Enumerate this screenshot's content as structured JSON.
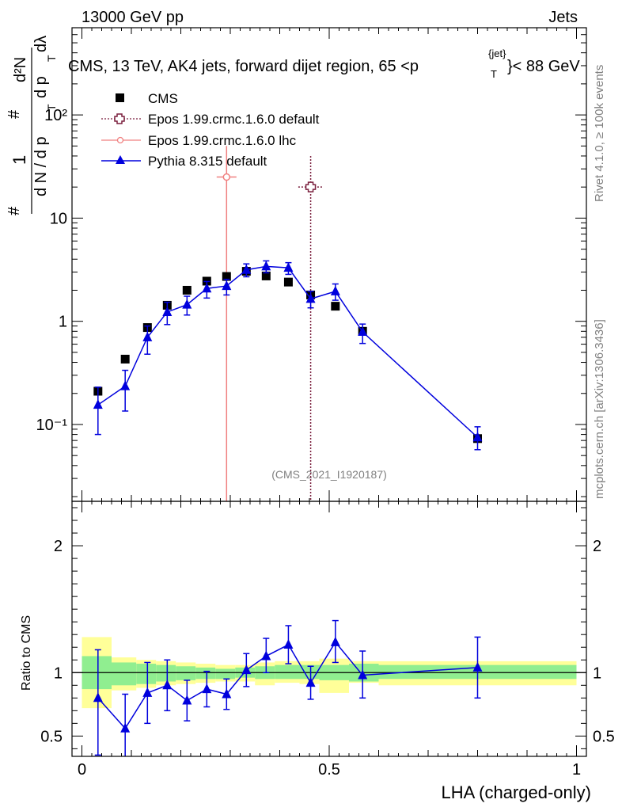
{
  "header": {
    "left": "13000 GeV pp",
    "right": "Jets",
    "plot_title_main": "CMS, 13 TeV, AK4 jets, forward dijet region, 65 <p",
    "plot_title_sub": "T",
    "plot_title_sup": "{jet}",
    "plot_title_end": "}< 88 GeV",
    "watermark": "(CMS_2021_I1920187)",
    "side_label_top": "Rivet 4.1.0, ≥ 100k events",
    "side_label_bottom": "mcplots.cern.ch [arXiv:1306.3436]"
  },
  "colors": {
    "cms": "#000000",
    "epos_default": "#7a1f3d",
    "epos_lhc": "#f08080",
    "pythia": "#0000dd",
    "band_inner": "#90ee90",
    "band_outer": "#ffff99"
  },
  "chart_data": [
    {
      "type": "scatter",
      "panel": "main",
      "title": "CMS, 13 TeV, AK4 jets, forward dijet region, 65 <p_T^{jet}< 88 GeV",
      "xlabel": "LHA (charged-only)",
      "ylabel_parts": [
        "1",
        "d N / d p",
        "T",
        "#",
        "d²N",
        "d p",
        "T",
        "dλ",
        "#"
      ],
      "yscale": "log",
      "ylim": [
        0.018,
        700
      ],
      "xlim": [
        -0.02,
        1.02
      ],
      "y_tick_labels": [
        "10⁻¹",
        "1",
        "10",
        "10²"
      ],
      "y_tick_values": [
        0.1,
        1,
        10,
        100
      ],
      "legend": [
        "CMS",
        "Epos 1.99.crmc.1.6.0 default",
        "Epos 1.99.crmc.1.6.0 lhc",
        "Pythia 8.315 default"
      ],
      "series": [
        {
          "name": "CMS",
          "marker": "square",
          "x": [
            0.0325,
            0.0875,
            0.1325,
            0.1725,
            0.2125,
            0.2525,
            0.2925,
            0.3325,
            0.3725,
            0.4175,
            0.4625,
            0.5125,
            0.5675,
            0.8
          ],
          "values": [
            0.21,
            0.43,
            0.87,
            1.43,
            2.0,
            2.45,
            2.72,
            3.05,
            2.75,
            2.4,
            1.8,
            1.4,
            0.8,
            0.073
          ]
        },
        {
          "name": "Epos 1.99.crmc.1.6.0 default",
          "marker": "open-cross",
          "x": [
            0.4625
          ],
          "xerr": [
            0.025
          ],
          "values": [
            20.0
          ],
          "yerr_low": [
            19.99
          ],
          "yerr_high": [
            20.0
          ]
        },
        {
          "name": "Epos 1.99.crmc.1.6.0 lhc",
          "marker": "open-circle",
          "x": [
            0.2925
          ],
          "xerr": [
            0.02
          ],
          "values": [
            25.0
          ],
          "yerr_low": [
            24.99
          ],
          "yerr_high": [
            25.0
          ]
        },
        {
          "name": "Pythia 8.315 default",
          "marker": "triangle",
          "x": [
            0.0325,
            0.0875,
            0.1325,
            0.1725,
            0.2125,
            0.2525,
            0.2925,
            0.3325,
            0.3725,
            0.4175,
            0.4625,
            0.5125,
            0.5675,
            0.8
          ],
          "values": [
            0.155,
            0.235,
            0.7,
            1.23,
            1.45,
            2.08,
            2.2,
            3.15,
            3.4,
            3.3,
            1.65,
            1.95,
            0.79,
            0.075
          ],
          "yerr_low": [
            0.075,
            0.1,
            0.22,
            0.3,
            0.3,
            0.4,
            0.4,
            0.45,
            0.45,
            0.45,
            0.3,
            0.35,
            0.18,
            0.018
          ],
          "yerr_high": [
            0.075,
            0.1,
            0.2,
            0.3,
            0.3,
            0.35,
            0.35,
            0.45,
            0.45,
            0.4,
            0.3,
            0.35,
            0.15,
            0.02
          ]
        }
      ]
    },
    {
      "type": "line",
      "panel": "ratio",
      "ylabel": "Ratio to CMS",
      "xlabel": "LHA (charged-only)",
      "ylim": [
        0.34,
        2.35
      ],
      "xlim": [
        -0.02,
        1.02
      ],
      "y_tick_labels": [
        "0.5",
        "1",
        "2"
      ],
      "y_tick_values": [
        0.5,
        1,
        2
      ],
      "x_tick_labels": [
        "0",
        "0.5",
        "1"
      ],
      "x_tick_values": [
        0,
        0.5,
        1
      ],
      "uncertainty_bands": {
        "edges": [
          0,
          0.06,
          0.11,
          0.15,
          0.19,
          0.23,
          0.27,
          0.31,
          0.35,
          0.39,
          0.44,
          0.48,
          0.54,
          0.6,
          1.0
        ],
        "inner_low": [
          0.87,
          0.9,
          0.91,
          0.93,
          0.94,
          0.95,
          0.95,
          0.96,
          0.95,
          0.95,
          0.95,
          0.94,
          0.93,
          0.95
        ],
        "inner_high": [
          1.13,
          1.08,
          1.07,
          1.06,
          1.05,
          1.04,
          1.03,
          1.04,
          1.05,
          1.06,
          1.06,
          1.06,
          1.07,
          1.06
        ],
        "outer_low": [
          0.72,
          0.86,
          0.88,
          0.9,
          0.91,
          0.92,
          0.93,
          0.93,
          0.9,
          0.92,
          0.91,
          0.84,
          0.92,
          0.9
        ],
        "outer_high": [
          1.28,
          1.12,
          1.1,
          1.09,
          1.08,
          1.07,
          1.06,
          1.06,
          1.08,
          1.09,
          1.09,
          1.11,
          1.09,
          1.09
        ]
      },
      "series": [
        {
          "name": "Pythia 8.315 default",
          "marker": "triangle",
          "x": [
            0.0325,
            0.0875,
            0.1325,
            0.1725,
            0.2125,
            0.2525,
            0.2925,
            0.3325,
            0.3725,
            0.4175,
            0.4625,
            0.5125,
            0.5675,
            0.8
          ],
          "values": [
            0.8,
            0.56,
            0.84,
            0.9,
            0.78,
            0.87,
            0.83,
            1.02,
            1.13,
            1.22,
            0.92,
            1.24,
            0.98,
            1.04
          ],
          "yerr_low": [
            0.45,
            0.25,
            0.24,
            0.2,
            0.16,
            0.14,
            0.12,
            0.13,
            0.13,
            0.15,
            0.13,
            0.16,
            0.18,
            0.24
          ],
          "yerr_high": [
            0.38,
            0.27,
            0.24,
            0.2,
            0.16,
            0.14,
            0.12,
            0.13,
            0.14,
            0.15,
            0.13,
            0.17,
            0.19,
            0.24
          ]
        }
      ]
    }
  ]
}
